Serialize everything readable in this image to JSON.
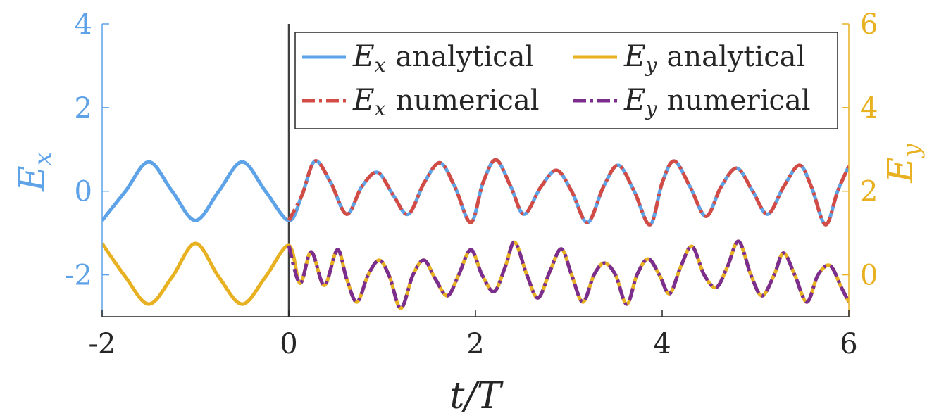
{
  "chart_data": {
    "type": "line",
    "xlabel": "t/T",
    "ylabel_left": "E",
    "ylabel_left_sub": "x",
    "ylabel_right": "E",
    "ylabel_right_sub": "y",
    "xlim": [
      -2,
      6
    ],
    "ylim_left": [
      -3,
      4
    ],
    "ylim_right": [
      -1,
      6
    ],
    "xticks": [
      -2,
      0,
      2,
      4,
      6
    ],
    "xtick_labels": [
      "-2",
      "0",
      "2",
      "4",
      "6"
    ],
    "yticks_left": [
      -2,
      0,
      2,
      4
    ],
    "ytick_labels_left": [
      "-2",
      "0",
      "2",
      "4"
    ],
    "yticks_right": [
      0,
      2,
      4,
      6
    ],
    "ytick_labels_right": [
      "0",
      "2",
      "4",
      "6"
    ],
    "vertical_line_x": 0,
    "grid": false,
    "legend_position": "top-right",
    "legend": [
      {
        "symbol": "E",
        "sub": "x",
        "text": "analytical",
        "color": "#5ea2e8",
        "style": "solid"
      },
      {
        "symbol": "E",
        "sub": "y",
        "text": "analytical",
        "color": "#e8b122",
        "style": "solid"
      },
      {
        "symbol": "E",
        "sub": "x",
        "text": "numerical",
        "color": "#d34b45",
        "style": "dashdot"
      },
      {
        "symbol": "E",
        "sub": "y",
        "text": "numerical",
        "color": "#7b2e8e",
        "style": "dashdot"
      }
    ],
    "series": [
      {
        "name": "Ex analytical",
        "axis": "left",
        "color": "#5ea2e8",
        "style": "solid",
        "x": [
          -2,
          -1.75,
          -1.5,
          -1.25,
          -1,
          -0.75,
          -0.5,
          -0.25,
          0,
          0.14,
          0.28,
          0.45,
          0.62,
          0.78,
          0.95,
          1.12,
          1.28,
          1.45,
          1.62,
          1.78,
          1.95,
          2.08,
          2.22,
          2.38,
          2.52,
          2.7,
          2.87,
          3.03,
          3.2,
          3.37,
          3.53,
          3.7,
          3.87,
          4.0,
          4.13,
          4.3,
          4.47,
          4.63,
          4.8,
          4.97,
          5.13,
          5.3,
          5.47,
          5.6,
          5.75,
          5.88,
          6.0
        ],
        "values": [
          -0.7,
          0,
          0.7,
          0,
          -0.7,
          0,
          0.7,
          0,
          -0.7,
          -0.1,
          0.72,
          0.2,
          -0.55,
          0.1,
          0.45,
          -0.1,
          -0.55,
          0.2,
          0.68,
          0.1,
          -0.75,
          0.2,
          0.75,
          0.1,
          -0.55,
          0.1,
          0.5,
          0.0,
          -0.75,
          0.1,
          0.62,
          0.0,
          -0.8,
          0.2,
          0.72,
          0.1,
          -0.6,
          0.1,
          0.55,
          0.0,
          -0.55,
          0.1,
          0.62,
          0.1,
          -0.8,
          0.0,
          0.6
        ]
      },
      {
        "name": "Ex numerical",
        "axis": "left",
        "color": "#d34b45",
        "style": "dashdot",
        "x": [
          0,
          0.14,
          0.28,
          0.45,
          0.62,
          0.78,
          0.95,
          1.12,
          1.28,
          1.45,
          1.62,
          1.78,
          1.95,
          2.08,
          2.22,
          2.38,
          2.52,
          2.7,
          2.87,
          3.03,
          3.2,
          3.37,
          3.53,
          3.7,
          3.87,
          4.0,
          4.13,
          4.3,
          4.47,
          4.63,
          4.8,
          4.97,
          5.13,
          5.3,
          5.47,
          5.6,
          5.75,
          5.88,
          6.0
        ],
        "values": [
          -0.7,
          -0.1,
          0.72,
          0.2,
          -0.55,
          0.1,
          0.45,
          -0.1,
          -0.55,
          0.2,
          0.68,
          0.1,
          -0.75,
          0.2,
          0.75,
          0.1,
          -0.55,
          0.1,
          0.5,
          0.0,
          -0.75,
          0.1,
          0.62,
          0.0,
          -0.8,
          0.2,
          0.72,
          0.1,
          -0.6,
          0.1,
          0.55,
          0.0,
          -0.55,
          0.1,
          0.62,
          0.1,
          -0.8,
          0.0,
          0.6
        ]
      },
      {
        "name": "Ey analytical",
        "axis": "right",
        "color": "#e8b122",
        "style": "solid",
        "x": [
          -2,
          -1.75,
          -1.5,
          -1.25,
          -1,
          -0.75,
          -0.5,
          -0.25,
          0,
          0.12,
          0.24,
          0.38,
          0.52,
          0.62,
          0.73,
          0.85,
          0.97,
          1.08,
          1.2,
          1.33,
          1.45,
          1.57,
          1.7,
          1.82,
          1.95,
          2.07,
          2.2,
          2.32,
          2.42,
          2.55,
          2.67,
          2.8,
          2.92,
          3.03,
          3.15,
          3.27,
          3.38,
          3.5,
          3.62,
          3.73,
          3.85,
          3.97,
          4.08,
          4.2,
          4.32,
          4.45,
          4.58,
          4.7,
          4.82,
          4.95,
          5.07,
          5.2,
          5.3,
          5.42,
          5.55,
          5.67,
          5.8,
          5.92,
          6.0
        ],
        "values": [
          0.75,
          -0.05,
          -0.7,
          -0.05,
          0.75,
          -0.05,
          -0.7,
          -0.05,
          0.7,
          -0.2,
          0.55,
          -0.25,
          0.6,
          -0.1,
          -0.65,
          0.0,
          0.35,
          -0.05,
          -0.8,
          0.0,
          0.35,
          -0.1,
          -0.5,
          0.0,
          0.6,
          0.0,
          -0.4,
          0.2,
          0.78,
          0.0,
          -0.55,
          0.1,
          0.62,
          0.0,
          -0.65,
          0.0,
          0.28,
          0.0,
          -0.7,
          0.0,
          0.38,
          0.0,
          -0.45,
          0.2,
          0.68,
          0.0,
          -0.3,
          0.2,
          0.8,
          0.0,
          -0.5,
          0.0,
          0.52,
          0.0,
          -0.65,
          0.0,
          0.22,
          -0.3,
          -0.65
        ]
      },
      {
        "name": "Ey numerical",
        "axis": "right",
        "color": "#7b2e8e",
        "style": "dashdot",
        "x": [
          0,
          0.12,
          0.24,
          0.38,
          0.52,
          0.62,
          0.73,
          0.85,
          0.97,
          1.08,
          1.2,
          1.33,
          1.45,
          1.57,
          1.7,
          1.82,
          1.95,
          2.07,
          2.2,
          2.32,
          2.42,
          2.55,
          2.67,
          2.8,
          2.92,
          3.03,
          3.15,
          3.27,
          3.38,
          3.5,
          3.62,
          3.73,
          3.85,
          3.97,
          4.08,
          4.2,
          4.32,
          4.45,
          4.58,
          4.7,
          4.82,
          4.95,
          5.07,
          5.2,
          5.3,
          5.42,
          5.55,
          5.67,
          5.8,
          5.92,
          6.0
        ],
        "values": [
          0.7,
          -0.2,
          0.55,
          -0.25,
          0.6,
          -0.1,
          -0.65,
          0.0,
          0.35,
          -0.05,
          -0.8,
          0.0,
          0.35,
          -0.1,
          -0.5,
          0.0,
          0.6,
          0.0,
          -0.4,
          0.2,
          0.78,
          0.0,
          -0.55,
          0.1,
          0.62,
          0.0,
          -0.65,
          0.0,
          0.28,
          0.0,
          -0.7,
          0.0,
          0.38,
          0.0,
          -0.45,
          0.2,
          0.68,
          0.0,
          -0.3,
          0.2,
          0.8,
          0.0,
          -0.5,
          0.0,
          0.52,
          0.0,
          -0.65,
          0.0,
          0.22,
          -0.3,
          -0.65
        ]
      }
    ],
    "colors": {
      "left_axis": "#5ea2e8",
      "right_axis": "#e8b122",
      "bottom_axis": "#262626",
      "vertical_line": "#404040"
    }
  }
}
